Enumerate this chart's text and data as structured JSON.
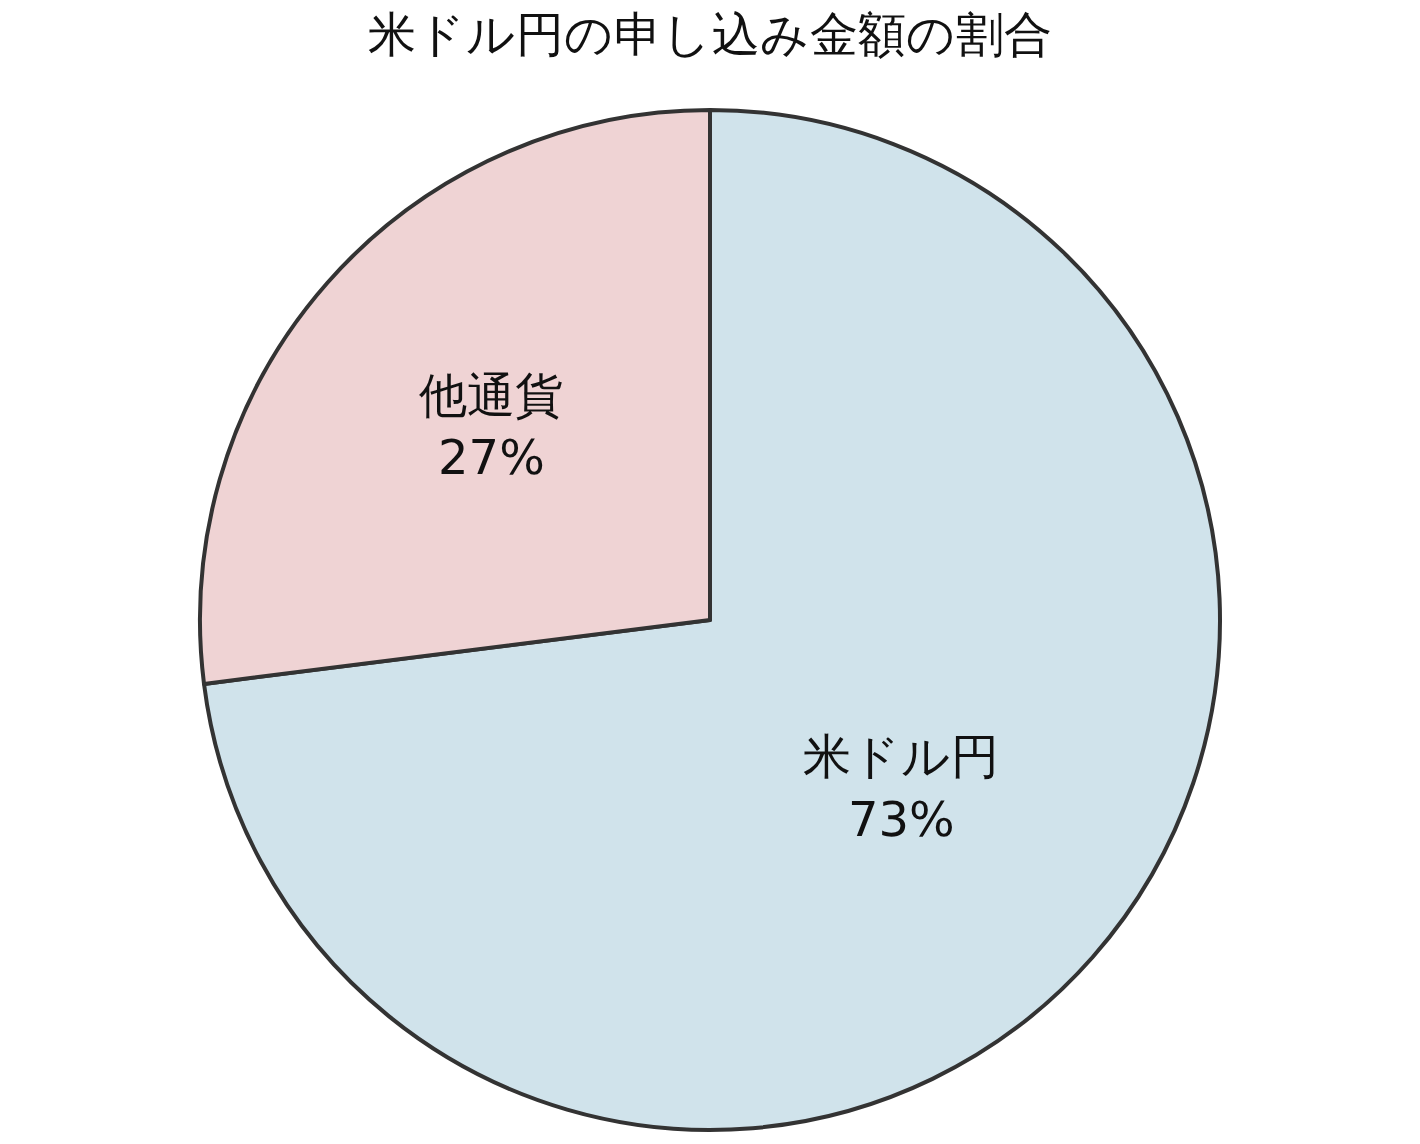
{
  "chart_data": {
    "type": "pie",
    "title": "米ドル円の申し込み金額の割合",
    "categories": [
      "米ドル円",
      "他通貨"
    ],
    "values": [
      73,
      27
    ],
    "value_labels": [
      "73%",
      "27%"
    ],
    "colors": [
      "#d0e3eb",
      "#efd3d4"
    ],
    "legend": false
  }
}
